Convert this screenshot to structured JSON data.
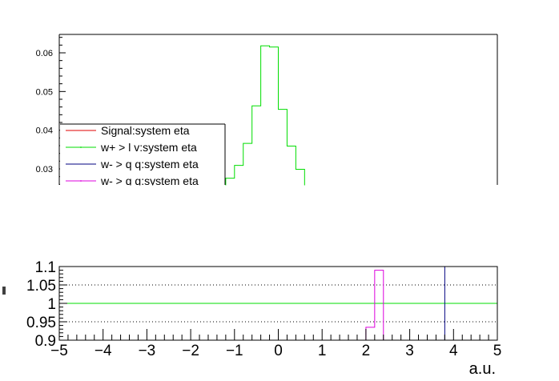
{
  "chart_data": [
    {
      "type": "line",
      "panel": "top",
      "title": "",
      "xlabel": "",
      "ylabel": "",
      "xlim": [
        -5,
        5
      ],
      "ylim_visible": [
        0.0255,
        0.0648
      ],
      "yticks": [
        "0.03",
        "0.04",
        "0.05",
        "0.06"
      ],
      "legend_placement": "left",
      "legend": [
        {
          "name": "Signal:system eta",
          "color": "#e00000"
        },
        {
          "name": "w+ > l v:system eta",
          "color": "#00dd00"
        },
        {
          "name": "w- > q q:system eta",
          "color": "#000080"
        },
        {
          "name": "w- > q q:system eta",
          "color": "#dd00dd"
        }
      ],
      "series": [
        {
          "name": "w+ > l v:system eta",
          "color": "#00dd00",
          "bin_width": 0.2,
          "bin_edges": [
            -1.4,
            -1.2,
            -1.0,
            -0.8,
            -0.6,
            -0.4,
            -0.2,
            0.0,
            0.2,
            0.4,
            0.6,
            0.8,
            1.0
          ],
          "values": [
            0.0254,
            0.0276,
            0.0309,
            0.0366,
            0.0463,
            0.0618,
            0.0615,
            0.0454,
            0.0359,
            0.0299,
            0.0254,
            0.0254
          ]
        }
      ]
    },
    {
      "type": "line",
      "panel": "bottom",
      "title": "",
      "xlabel": "a.u.",
      "ylabel": "",
      "xlim": [
        -5,
        5
      ],
      "ylim": [
        0.9,
        1.1
      ],
      "xticks": [
        "−5",
        "−4",
        "−3",
        "−2",
        "−1",
        "0",
        "1",
        "2",
        "3",
        "4",
        "5"
      ],
      "yticks": [
        "0.9",
        "0.95",
        "1",
        "1.05",
        "1.1"
      ],
      "gridlines_y": [
        0.95,
        1.05
      ],
      "reference_line": {
        "y": 1.0,
        "color": "#00dd00"
      },
      "series": [
        {
          "name": "w- > q q:system eta",
          "color": "#dd00dd",
          "bin_edges": [
            2.0,
            2.2,
            2.4
          ],
          "values": [
            0.935,
            1.09
          ]
        },
        {
          "name": "w- > q q:system eta",
          "color": "#000080",
          "x": 3.8,
          "vertical_line": true
        }
      ]
    }
  ]
}
